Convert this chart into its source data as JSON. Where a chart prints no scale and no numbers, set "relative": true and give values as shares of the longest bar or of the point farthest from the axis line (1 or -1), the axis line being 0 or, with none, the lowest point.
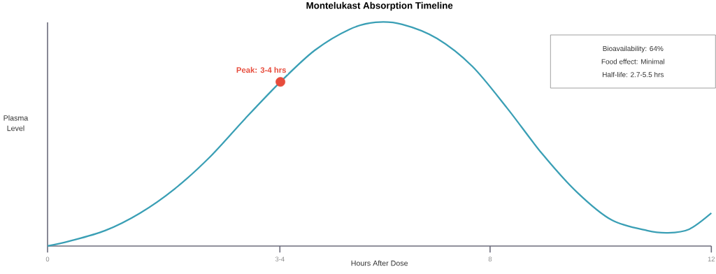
{
  "chart_data": {
    "type": "line",
    "title": "Montelukast Absorption Timeline",
    "xlabel": "Hours After Dose",
    "ylabel": "Plasma Level",
    "relative": true,
    "xlim": [
      0,
      12
    ],
    "xticks": [
      0,
      {
        "value": 4.2,
        "label": "3-4"
      },
      8,
      12
    ],
    "series": [
      {
        "color": "#3a9fb5",
        "x": [
          0,
          0.4,
          1.04,
          1.67,
          2.3,
          2.93,
          3.57,
          4.21,
          4.83,
          5.46,
          5.93,
          6.41,
          7.04,
          7.68,
          8.31,
          8.94,
          9.57,
          10.2,
          10.84,
          11.22,
          11.6,
          12
        ],
        "values": [
          0,
          0.022,
          0.069,
          0.147,
          0.256,
          0.397,
          0.569,
          0.734,
          0.875,
          0.969,
          1.0,
          0.991,
          0.928,
          0.803,
          0.616,
          0.413,
          0.241,
          0.116,
          0.069,
          0.059,
          0.075,
          0.147
        ]
      },
      {
        "type": "scatter",
        "color": "#e74c3c",
        "x": [
          4.21
        ],
        "values": [
          0.734
        ]
      }
    ],
    "annotations": [
      {
        "text": "Peak: 3-4 hrs",
        "x": 4.21,
        "y": 0.734
      },
      "Bioavailability: 64%",
      "Food effect: Minimal",
      "Half-life: 2.7-5.5 hrs"
    ]
  }
}
